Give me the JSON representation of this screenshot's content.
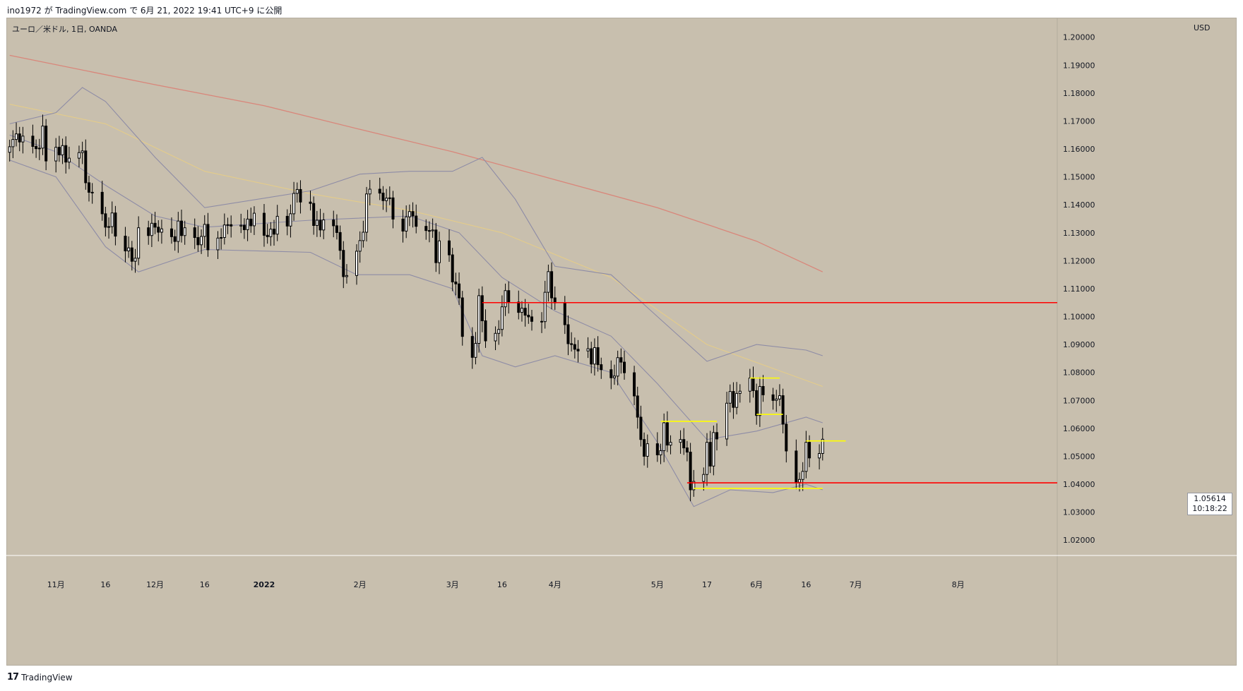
{
  "header": {
    "published_line": "ino1972 が TradingView.com で 6月 21, 2022 19:41 UTC+9 に公開"
  },
  "chart": {
    "symbol_line": "ユーロ／米ドル, 1日, OANDA",
    "currency": "USD",
    "last_price": "1.05614",
    "countdown": "10:18:22"
  },
  "footer": {
    "brand": "TradingView",
    "logo_icon": "tradingview-logo-icon"
  },
  "colors": {
    "background": "#c8bfae",
    "up_candle": "#ffffff",
    "down_candle": "#000000",
    "support_resistance": "#ff0000",
    "range_lines": "#ffff00",
    "ma_long": "#d9867a",
    "ma_mid": "#e4cc8a",
    "bollinger": "#8e8ca6"
  },
  "chart_data": {
    "type": "candlestick",
    "title": "ユーロ／米ドル, 1日, OANDA",
    "ylabel": "USD",
    "ylim": [
      1.015,
      1.207
    ],
    "yticks": [
      "1.20000",
      "1.19000",
      "1.18000",
      "1.17000",
      "1.16000",
      "1.15000",
      "1.14000",
      "1.13000",
      "1.12000",
      "1.11000",
      "1.10000",
      "1.09000",
      "1.08000",
      "1.07000",
      "1.06000",
      "1.05000",
      "1.04000",
      "1.03000",
      "1.02000"
    ],
    "xticks": [
      {
        "label": "11月",
        "date": "2021-11-01"
      },
      {
        "label": "16",
        "date": "2021-11-16"
      },
      {
        "label": "12月",
        "date": "2021-12-01"
      },
      {
        "label": "16",
        "date": "2021-12-16"
      },
      {
        "label": "2022",
        "date": "2022-01-03",
        "bold": true
      },
      {
        "label": "2月",
        "date": "2022-02-01"
      },
      {
        "label": "3月",
        "date": "2022-03-01"
      },
      {
        "label": "16",
        "date": "2022-03-16"
      },
      {
        "label": "4月",
        "date": "2022-04-01"
      },
      {
        "label": "5月",
        "date": "2022-05-02"
      },
      {
        "label": "17",
        "date": "2022-05-17"
      },
      {
        "label": "6月",
        "date": "2022-06-01"
      },
      {
        "label": "16",
        "date": "2022-06-16"
      },
      {
        "label": "7月",
        "date": "2022-07-01"
      },
      {
        "label": "8月",
        "date": "2022-08-01"
      }
    ],
    "x_range": [
      "2021-10-17",
      "2022-08-31"
    ],
    "closes": [
      [
        "2021-10-18",
        1.1608
      ],
      [
        "2021-10-19",
        1.1634
      ],
      [
        "2021-10-20",
        1.1654
      ],
      [
        "2021-10-21",
        1.1625
      ],
      [
        "2021-10-22",
        1.1646
      ],
      [
        "2021-10-25",
        1.1609
      ],
      [
        "2021-10-26",
        1.1601
      ],
      [
        "2021-10-27",
        1.1603
      ],
      [
        "2021-10-28",
        1.1682
      ],
      [
        "2021-10-29",
        1.1557
      ],
      [
        "2021-11-01",
        1.1606
      ],
      [
        "2021-11-02",
        1.1579
      ],
      [
        "2021-11-03",
        1.1612
      ],
      [
        "2021-11-04",
        1.1553
      ],
      [
        "2021-11-05",
        1.1567
      ],
      [
        "2021-11-08",
        1.1587
      ],
      [
        "2021-11-09",
        1.1593
      ],
      [
        "2021-11-10",
        1.1479
      ],
      [
        "2021-11-11",
        1.1445
      ],
      [
        "2021-11-12",
        1.1445
      ],
      [
        "2021-11-15",
        1.1368
      ],
      [
        "2021-11-16",
        1.132
      ],
      [
        "2021-11-17",
        1.1322
      ],
      [
        "2021-11-18",
        1.1371
      ],
      [
        "2021-11-19",
        1.1288
      ],
      [
        "2021-11-22",
        1.1235
      ],
      [
        "2021-11-23",
        1.1246
      ],
      [
        "2021-11-24",
        1.1198
      ],
      [
        "2021-11-25",
        1.1209
      ],
      [
        "2021-11-26",
        1.1318
      ],
      [
        "2021-11-29",
        1.129
      ],
      [
        "2021-11-30",
        1.1334
      ],
      [
        "2021-12-01",
        1.132
      ],
      [
        "2021-12-02",
        1.1302
      ],
      [
        "2021-12-03",
        1.1314
      ],
      [
        "2021-12-06",
        1.1286
      ],
      [
        "2021-12-07",
        1.1269
      ],
      [
        "2021-12-08",
        1.1342
      ],
      [
        "2021-12-09",
        1.129
      ],
      [
        "2021-12-10",
        1.1318
      ],
      [
        "2021-12-13",
        1.1283
      ],
      [
        "2021-12-14",
        1.1257
      ],
      [
        "2021-12-15",
        1.1287
      ],
      [
        "2021-12-16",
        1.133
      ],
      [
        "2021-12-17",
        1.1239
      ],
      [
        "2021-12-20",
        1.1281
      ],
      [
        "2021-12-21",
        1.1283
      ],
      [
        "2021-12-22",
        1.1328
      ],
      [
        "2021-12-23",
        1.1329
      ],
      [
        "2021-12-24",
        1.1324
      ],
      [
        "2021-12-27",
        1.1327
      ],
      [
        "2021-12-28",
        1.1311
      ],
      [
        "2021-12-29",
        1.1349
      ],
      [
        "2021-12-30",
        1.1325
      ],
      [
        "2021-12-31",
        1.137
      ],
      [
        "2022-01-03",
        1.1291
      ],
      [
        "2022-01-04",
        1.1286
      ],
      [
        "2022-01-05",
        1.1313
      ],
      [
        "2022-01-06",
        1.1295
      ],
      [
        "2022-01-07",
        1.1359
      ],
      [
        "2022-01-10",
        1.1324
      ],
      [
        "2022-01-11",
        1.1368
      ],
      [
        "2022-01-12",
        1.1441
      ],
      [
        "2022-01-13",
        1.1455
      ],
      [
        "2022-01-14",
        1.141
      ],
      [
        "2022-01-17",
        1.1405
      ],
      [
        "2022-01-18",
        1.1326
      ],
      [
        "2022-01-19",
        1.1345
      ],
      [
        "2022-01-20",
        1.131
      ],
      [
        "2022-01-21",
        1.1346
      ],
      [
        "2022-01-24",
        1.1325
      ],
      [
        "2022-01-25",
        1.1301
      ],
      [
        "2022-01-26",
        1.1237
      ],
      [
        "2022-01-27",
        1.1143
      ],
      [
        "2022-01-28",
        1.1147
      ],
      [
        "2022-01-31",
        1.1234
      ],
      [
        "2022-02-01",
        1.1272
      ],
      [
        "2022-02-02",
        1.1302
      ],
      [
        "2022-02-03",
        1.1439
      ],
      [
        "2022-02-04",
        1.1456
      ],
      [
        "2022-02-07",
        1.1442
      ],
      [
        "2022-02-08",
        1.1415
      ],
      [
        "2022-02-09",
        1.1424
      ],
      [
        "2022-02-10",
        1.1425
      ],
      [
        "2022-02-11",
        1.1349
      ],
      [
        "2022-02-14",
        1.1306
      ],
      [
        "2022-02-15",
        1.1357
      ],
      [
        "2022-02-16",
        1.1376
      ],
      [
        "2022-02-17",
        1.136
      ],
      [
        "2022-02-18",
        1.1323
      ],
      [
        "2022-02-21",
        1.1308
      ],
      [
        "2022-02-22",
        1.1307
      ],
      [
        "2022-02-23",
        1.131
      ],
      [
        "2022-02-24",
        1.1193
      ],
      [
        "2022-02-25",
        1.1271
      ],
      [
        "2022-02-28",
        1.1221
      ],
      [
        "2022-03-01",
        1.1124
      ],
      [
        "2022-03-02",
        1.1117
      ],
      [
        "2022-03-03",
        1.1067
      ],
      [
        "2022-03-04",
        1.0929
      ],
      [
        "2022-03-07",
        1.0854
      ],
      [
        "2022-03-08",
        1.0904
      ],
      [
        "2022-03-09",
        1.1075
      ],
      [
        "2022-03-10",
        1.0985
      ],
      [
        "2022-03-11",
        1.0913
      ],
      [
        "2022-03-14",
        1.094
      ],
      [
        "2022-03-15",
        1.0954
      ],
      [
        "2022-03-16",
        1.1035
      ],
      [
        "2022-03-17",
        1.1093
      ],
      [
        "2022-03-18",
        1.1052
      ],
      [
        "2022-03-21",
        1.1015
      ],
      [
        "2022-03-22",
        1.103
      ],
      [
        "2022-03-23",
        1.1005
      ],
      [
        "2022-03-24",
        1.0999
      ],
      [
        "2022-03-25",
        1.0983
      ],
      [
        "2022-03-28",
        1.0982
      ],
      [
        "2022-03-29",
        1.1087
      ],
      [
        "2022-03-30",
        1.1161
      ],
      [
        "2022-03-31",
        1.1067
      ],
      [
        "2022-04-01",
        1.1049
      ],
      [
        "2022-04-04",
        1.0971
      ],
      [
        "2022-04-05",
        1.0903
      ],
      [
        "2022-04-06",
        1.09
      ],
      [
        "2022-04-07",
        1.0883
      ],
      [
        "2022-04-08",
        1.0877
      ],
      [
        "2022-04-11",
        1.0885
      ],
      [
        "2022-04-12",
        1.083
      ],
      [
        "2022-04-13",
        1.0889
      ],
      [
        "2022-04-14",
        1.0828
      ],
      [
        "2022-04-15",
        1.081
      ],
      [
        "2022-04-18",
        1.0781
      ],
      [
        "2022-04-19",
        1.0787
      ],
      [
        "2022-04-20",
        1.0853
      ],
      [
        "2022-04-21",
        1.0837
      ],
      [
        "2022-04-22",
        1.0799
      ],
      [
        "2022-04-25",
        1.0716
      ],
      [
        "2022-04-26",
        1.064
      ],
      [
        "2022-04-27",
        1.056
      ],
      [
        "2022-04-28",
        1.05
      ],
      [
        "2022-04-29",
        1.0545
      ],
      [
        "2022-05-02",
        1.0505
      ],
      [
        "2022-05-03",
        1.052
      ],
      [
        "2022-05-04",
        1.062
      ],
      [
        "2022-05-05",
        1.054
      ],
      [
        "2022-05-06",
        1.055
      ],
      [
        "2022-05-09",
        1.056
      ],
      [
        "2022-05-10",
        1.053
      ],
      [
        "2022-05-11",
        1.0515
      ],
      [
        "2022-05-12",
        1.038
      ],
      [
        "2022-05-13",
        1.041
      ],
      [
        "2022-05-16",
        1.0435
      ],
      [
        "2022-05-17",
        1.055
      ],
      [
        "2022-05-18",
        1.0465
      ],
      [
        "2022-05-19",
        1.0585
      ],
      [
        "2022-05-20",
        1.0562
      ],
      [
        "2022-05-23",
        1.069
      ],
      [
        "2022-05-24",
        1.0732
      ],
      [
        "2022-05-25",
        1.0675
      ],
      [
        "2022-05-26",
        1.0725
      ],
      [
        "2022-05-27",
        1.0733
      ],
      [
        "2022-05-30",
        1.078
      ],
      [
        "2022-05-31",
        1.0735
      ],
      [
        "2022-06-01",
        1.0646
      ],
      [
        "2022-06-02",
        1.075
      ],
      [
        "2022-06-03",
        1.072
      ],
      [
        "2022-06-06",
        1.07
      ],
      [
        "2022-06-07",
        1.0705
      ],
      [
        "2022-06-08",
        1.0717
      ],
      [
        "2022-06-09",
        1.0615
      ],
      [
        "2022-06-10",
        1.0519
      ],
      [
        "2022-06-13",
        1.0407
      ],
      [
        "2022-06-14",
        1.0417
      ],
      [
        "2022-06-15",
        1.0446
      ],
      [
        "2022-06-16",
        1.055
      ],
      [
        "2022-06-17",
        1.0494
      ],
      [
        "2022-06-20",
        1.051
      ],
      [
        "2022-06-21",
        1.0561
      ]
    ],
    "horizontal_lines": [
      {
        "color": "red",
        "price": 1.105,
        "from": "2022-03-10"
      },
      {
        "color": "red",
        "price": 1.0405,
        "from": "2022-05-11"
      },
      {
        "color": "yellow",
        "price": 1.078,
        "from": "2022-05-30",
        "to": "2022-06-08"
      },
      {
        "color": "yellow",
        "price": 1.065,
        "from": "2022-06-01",
        "to": "2022-06-09"
      },
      {
        "color": "yellow",
        "price": 1.0625,
        "from": "2022-05-03",
        "to": "2022-05-20"
      },
      {
        "color": "yellow",
        "price": 1.0385,
        "from": "2022-05-13",
        "to": "2022-06-21"
      },
      {
        "color": "yellow",
        "price": 1.0555,
        "from": "2022-06-16",
        "to": "2022-06-28"
      }
    ],
    "ma_long": [
      [
        "2021-10-18",
        1.1935
      ],
      [
        "2021-12-01",
        1.183
      ],
      [
        "2022-01-03",
        1.1755
      ],
      [
        "2022-02-01",
        1.167
      ],
      [
        "2022-03-01",
        1.159
      ],
      [
        "2022-04-01",
        1.149
      ],
      [
        "2022-05-02",
        1.139
      ],
      [
        "2022-06-01",
        1.127
      ],
      [
        "2022-06-21",
        1.116
      ]
    ],
    "ma_mid": [
      [
        "2021-10-18",
        1.176
      ],
      [
        "2021-11-16",
        1.169
      ],
      [
        "2021-12-16",
        1.152
      ],
      [
        "2022-01-17",
        1.144
      ],
      [
        "2022-02-16",
        1.138
      ],
      [
        "2022-03-16",
        1.13
      ],
      [
        "2022-04-18",
        1.114
      ],
      [
        "2022-05-17",
        1.09
      ],
      [
        "2022-06-21",
        1.075
      ]
    ],
    "boll_mid": [
      [
        "2021-10-18",
        1.165
      ],
      [
        "2021-11-01",
        1.159
      ],
      [
        "2021-11-16",
        1.147
      ],
      [
        "2021-12-01",
        1.136
      ],
      [
        "2021-12-16",
        1.132
      ],
      [
        "2022-01-17",
        1.1345
      ],
      [
        "2022-02-16",
        1.136
      ],
      [
        "2022-03-03",
        1.13
      ],
      [
        "2022-03-16",
        1.114
      ],
      [
        "2022-04-01",
        1.102
      ],
      [
        "2022-04-18",
        1.093
      ],
      [
        "2022-05-02",
        1.076
      ],
      [
        "2022-05-17",
        1.056
      ],
      [
        "2022-06-01",
        1.059
      ],
      [
        "2022-06-16",
        1.064
      ],
      [
        "2022-06-21",
        1.062
      ]
    ],
    "boll_upper": [
      [
        "2021-10-18",
        1.169
      ],
      [
        "2021-11-01",
        1.173
      ],
      [
        "2021-11-09",
        1.182
      ],
      [
        "2021-11-16",
        1.177
      ],
      [
        "2021-12-01",
        1.157
      ],
      [
        "2021-12-16",
        1.139
      ],
      [
        "2022-01-17",
        1.145
      ],
      [
        "2022-02-01",
        1.151
      ],
      [
        "2022-02-16",
        1.152
      ],
      [
        "2022-03-01",
        1.152
      ],
      [
        "2022-03-10",
        1.157
      ],
      [
        "2022-03-20",
        1.142
      ],
      [
        "2022-04-01",
        1.118
      ],
      [
        "2022-04-18",
        1.115
      ],
      [
        "2022-05-02",
        1.1
      ],
      [
        "2022-05-17",
        1.084
      ],
      [
        "2022-06-01",
        1.09
      ],
      [
        "2022-06-16",
        1.088
      ],
      [
        "2022-06-21",
        1.086
      ]
    ],
    "boll_lower": [
      [
        "2021-10-18",
        1.156
      ],
      [
        "2021-11-01",
        1.15
      ],
      [
        "2021-11-16",
        1.125
      ],
      [
        "2021-11-26",
        1.116
      ],
      [
        "2021-12-16",
        1.124
      ],
      [
        "2022-01-17",
        1.123
      ],
      [
        "2022-01-31",
        1.115
      ],
      [
        "2022-02-16",
        1.115
      ],
      [
        "2022-03-01",
        1.11
      ],
      [
        "2022-03-10",
        1.086
      ],
      [
        "2022-03-20",
        1.082
      ],
      [
        "2022-04-01",
        1.086
      ],
      [
        "2022-04-18",
        1.08
      ],
      [
        "2022-05-02",
        1.055
      ],
      [
        "2022-05-13",
        1.032
      ],
      [
        "2022-05-24",
        1.038
      ],
      [
        "2022-06-06",
        1.037
      ],
      [
        "2022-06-16",
        1.04
      ],
      [
        "2022-06-21",
        1.038
      ]
    ]
  }
}
